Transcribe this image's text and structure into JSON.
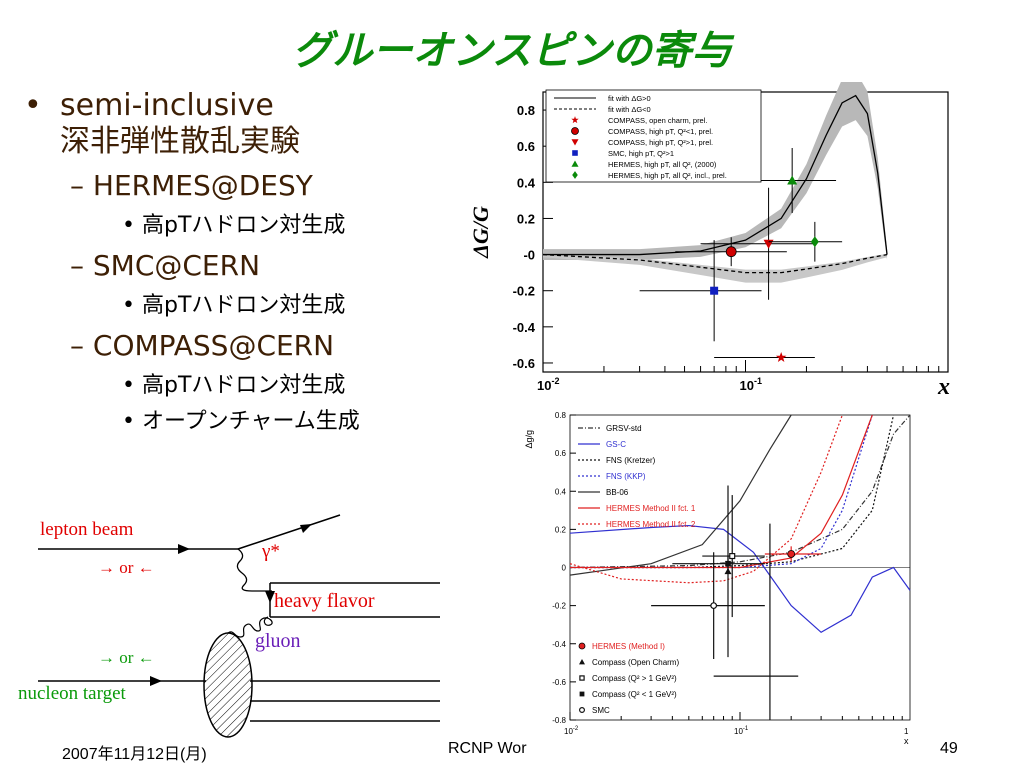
{
  "slide": {
    "title": "グルーオンスピンの寄与",
    "bullets": [
      {
        "level": 1,
        "text": "semi-inclusive"
      },
      {
        "level": 1,
        "text": "深非弾性散乱実験",
        "cont": true
      },
      {
        "level": 2,
        "text": "– HERMES@DESY"
      },
      {
        "level": 3,
        "text": "高pTハドロン対生成"
      },
      {
        "level": 2,
        "text": "– SMC@CERN"
      },
      {
        "level": 3,
        "text": "高pTハドロン対生成"
      },
      {
        "level": 2,
        "text": "– COMPASS@CERN"
      },
      {
        "level": 3,
        "text": "高pTハドロン対生成"
      },
      {
        "level": 3,
        "text": "オープンチャーム生成"
      }
    ],
    "bullet_symbol": "•",
    "footer": {
      "date": "2007年11月12日(月)",
      "center": "RCNP Wor",
      "page": "49"
    }
  },
  "diagram": {
    "lepton_label": "lepton beam",
    "arrows1": "→ or ←",
    "photon_label": "γ*",
    "heavy_label": "heavy flavor",
    "gluon_label": "gluon",
    "arrows2": "→ or ←",
    "nucleon_label": "nucleon target",
    "colors": {
      "red": "#e00000",
      "green": "#0a9a0a",
      "purple": "#6a1fb8"
    }
  },
  "chart_data": [
    {
      "type": "scatter",
      "ylabel": "ΔG/G",
      "xlabel": "x",
      "xscale": "log",
      "xlim": [
        0.01,
        1
      ],
      "ylim": [
        -0.65,
        0.9
      ],
      "xticks": [
        "10-2",
        "10-1"
      ],
      "yticks": [
        0.8,
        0.6,
        0.4,
        0.2,
        "-0",
        "-0.2",
        "-0.4",
        "-0.6"
      ],
      "legend_position": "top-left",
      "curves": [
        {
          "name": "fit with ΔG>0",
          "style": "solid",
          "x": [
            0.01,
            0.03,
            0.06,
            0.1,
            0.15,
            0.2,
            0.25,
            0.3,
            0.35,
            0.4,
            0.45,
            0.5
          ],
          "y": [
            0.0,
            0.0,
            0.02,
            0.08,
            0.2,
            0.42,
            0.66,
            0.84,
            0.88,
            0.78,
            0.45,
            0.0
          ]
        },
        {
          "name": "fit with ΔG<0",
          "style": "dashed",
          "x": [
            0.01,
            0.03,
            0.06,
            0.1,
            0.15,
            0.2,
            0.3,
            0.4,
            0.5
          ],
          "y": [
            0.0,
            -0.03,
            -0.07,
            -0.1,
            -0.1,
            -0.08,
            -0.05,
            -0.02,
            0.0
          ]
        }
      ],
      "points": [
        {
          "name": "COMPASS, open charm, prel.",
          "marker": "star",
          "color": "#d00000",
          "x": 0.15,
          "y": -0.57,
          "xerr": [
            0.07,
            0.22
          ],
          "yerr": 0.0
        },
        {
          "name": "COMPASS, high pT, Q²<1, prel.",
          "marker": "circle",
          "color": "#d00000",
          "x": 0.085,
          "y": 0.016,
          "xerr": [
            0.045,
            0.16
          ],
          "yerr": 0.08
        },
        {
          "name": "COMPASS, high pT, Q²>1, prel.",
          "marker": "triangle-down",
          "color": "#d00000",
          "x": 0.13,
          "y": 0.06,
          "xerr": [
            0.06,
            0.22
          ],
          "yerr": 0.31
        },
        {
          "name": "SMC, high pT, Q²>1",
          "marker": "square",
          "color": "#1020c0",
          "x": 0.07,
          "y": -0.2,
          "xerr": [
            0.03,
            0.12
          ],
          "yerr": 0.28
        },
        {
          "name": "HERMES, high pT, all Q², (2000)",
          "marker": "triangle-up",
          "color": "#0a8a0a",
          "x": 0.17,
          "y": 0.41,
          "xerr": [
            0.07,
            0.28
          ],
          "yerr": 0.18
        },
        {
          "name": "HERMES, high pT, all Q², incl., prel.",
          "marker": "diamond",
          "color": "#0a8a0a",
          "x": 0.22,
          "y": 0.071,
          "xerr": [
            0.13,
            0.3
          ],
          "yerr": 0.11
        }
      ],
      "legend": [
        "fit with ΔG>0",
        "fit with ΔG<0",
        "COMPASS, open charm, prel.",
        "COMPASS, high pT, Q²<1, prel.",
        "COMPASS, high pT, Q²>1, prel.",
        "SMC, high pT, Q²>1",
        "HERMES, high pT, all Q², (2000)",
        "HERMES, high pT, all Q², incl., prel."
      ]
    },
    {
      "type": "scatter",
      "ylabel": "Δg/g",
      "xlabel": "x",
      "xscale": "log",
      "xlim": [
        0.01,
        1
      ],
      "ylim": [
        -0.8,
        0.8
      ],
      "yticks": [
        0.8,
        0.6,
        0.4,
        0.2,
        0,
        -0.2,
        -0.4,
        -0.6,
        -0.8
      ],
      "xticks": [
        "10-2",
        "10-1",
        "1"
      ],
      "legend_position": "top-left",
      "curves": [
        {
          "name": "GRSV-std",
          "color": "#333333",
          "style": "dashdot",
          "x": [
            0.01,
            0.05,
            0.1,
            0.2,
            0.4,
            0.6,
            0.8,
            1.0
          ],
          "y": [
            0.0,
            0.01,
            0.03,
            0.08,
            0.2,
            0.4,
            0.7,
            0.8
          ]
        },
        {
          "name": "GS-C",
          "color": "#3030d0",
          "style": "solid",
          "x": [
            0.01,
            0.03,
            0.05,
            0.08,
            0.12,
            0.2,
            0.3,
            0.45,
            0.6,
            0.8,
            1.0
          ],
          "y": [
            0.18,
            0.21,
            0.22,
            0.2,
            0.08,
            -0.2,
            -0.34,
            -0.25,
            -0.05,
            0.0,
            -0.12
          ]
        },
        {
          "name": "FNS (Kretzer)",
          "color": "#111111",
          "style": "dotted",
          "x": [
            0.01,
            0.05,
            0.1,
            0.2,
            0.4,
            0.6,
            0.8
          ],
          "y": [
            0.0,
            0.0,
            0.01,
            0.03,
            0.1,
            0.3,
            0.8
          ]
        },
        {
          "name": "FNS (KKP)",
          "color": "#3030d0",
          "style": "dotted",
          "x": [
            0.01,
            0.05,
            0.1,
            0.2,
            0.3,
            0.4,
            0.6
          ],
          "y": [
            0.0,
            0.0,
            0.0,
            0.02,
            0.1,
            0.3,
            0.8
          ]
        },
        {
          "name": "BB-06",
          "color": "#333333",
          "style": "solid",
          "x": [
            0.01,
            0.03,
            0.06,
            0.1,
            0.15,
            0.2
          ],
          "y": [
            -0.04,
            0.02,
            0.12,
            0.35,
            0.62,
            0.8
          ]
        },
        {
          "name": "HERMES Method II fct. 1",
          "color": "#e02020",
          "style": "solid",
          "x": [
            0.01,
            0.05,
            0.1,
            0.2,
            0.3,
            0.4,
            0.6
          ],
          "y": [
            0.0,
            0.0,
            0.0,
            0.05,
            0.18,
            0.38,
            0.8
          ]
        },
        {
          "name": "HERMES Method II fct. 2",
          "color": "#e02020",
          "style": "dotted",
          "x": [
            0.01,
            0.02,
            0.05,
            0.08,
            0.12,
            0.2,
            0.3,
            0.4
          ],
          "y": [
            0.02,
            -0.06,
            -0.08,
            -0.07,
            -0.02,
            0.15,
            0.5,
            0.8
          ]
        }
      ],
      "points": [
        {
          "name": "HERMES (Method I)",
          "marker": "circle-filled",
          "color": "#e02020",
          "x": 0.2,
          "y": 0.071,
          "xerr": [
            0.14,
            0.3
          ],
          "yerr": 0.04
        },
        {
          "name": "Compass (Open Charm)",
          "marker": "triangle-up",
          "color": "#111111",
          "x": 0.085,
          "y": -0.02,
          "xerr": [
            0.0,
            0.0
          ],
          "yerr": 0.45
        },
        {
          "name": "Compass (Q² > 1 GeV²)",
          "marker": "square-open",
          "color": "#111111",
          "x": 0.09,
          "y": 0.06,
          "xerr": [
            0.06,
            0.14
          ],
          "yerr": 0.32
        },
        {
          "name": "Compass (Q² < 1 GeV²)",
          "marker": "square-filled",
          "color": "#111111",
          "x": 0.085,
          "y": 0.02,
          "xerr": [
            0.04,
            0.14
          ],
          "yerr": 0.04
        },
        {
          "name": "SMC",
          "marker": "circle-open",
          "color": "#111111",
          "x": 0.07,
          "y": -0.2,
          "xerr": [
            0.03,
            0.14
          ],
          "yerr": 0.28
        },
        {
          "name": "Compass (Open Charm)",
          "marker": "none",
          "color": "#111111",
          "x": 0.15,
          "y": -0.57,
          "xerr": [
            0.07,
            0.22
          ],
          "yerr": 0.8
        }
      ],
      "legend_lines": [
        "GRSV-std",
        "GS-C",
        "FNS (Kretzer)",
        "FNS (KKP)",
        "BB-06",
        "HERMES Method II fct. 1",
        "HERMES Method II fct. 2"
      ],
      "legend_points": [
        "HERMES (Method I)",
        "Compass (Open Charm)",
        "Compass (Q² > 1 GeV²)",
        "Compass (Q² < 1 GeV²)",
        "SMC"
      ]
    }
  ]
}
